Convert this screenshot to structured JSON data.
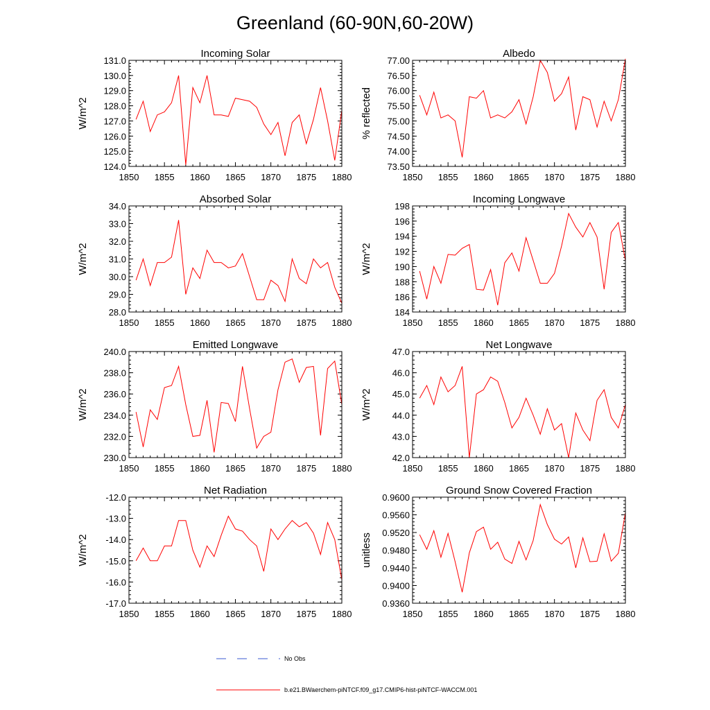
{
  "page_title": "Greenland (60-90N,60-20W)",
  "chart_data": [
    {
      "type": "line",
      "title": "Incoming Solar",
      "xlabel": "",
      "ylabel": "W/m^2",
      "xlim": [
        1850,
        1880
      ],
      "ylim": [
        124.0,
        131.0
      ],
      "xticks": [
        "1850",
        "1855",
        "1860",
        "1865",
        "1870",
        "1875",
        "1880"
      ],
      "yticks": [
        "124.0",
        "125.0",
        "126.0",
        "127.0",
        "128.0",
        "129.0",
        "130.0",
        "131.0"
      ],
      "x": [
        1851,
        1852,
        1853,
        1854,
        1855,
        1856,
        1857,
        1858,
        1859,
        1860,
        1861,
        1862,
        1863,
        1864,
        1865,
        1866,
        1867,
        1868,
        1869,
        1870,
        1871,
        1872,
        1873,
        1874,
        1875,
        1876,
        1877,
        1878,
        1879,
        1880
      ],
      "series": [
        {
          "values": [
            127.1,
            128.3,
            126.3,
            127.4,
            127.6,
            128.2,
            130.0,
            124.1,
            129.2,
            128.2,
            130.0,
            127.4,
            127.4,
            127.3,
            128.5,
            128.4,
            128.3,
            127.9,
            126.8,
            126.1,
            126.9,
            124.7,
            126.9,
            127.4,
            125.5,
            127.1,
            129.2,
            127.0,
            124.4,
            127.7
          ]
        }
      ]
    },
    {
      "type": "line",
      "title": "Albedo",
      "xlabel": "",
      "ylabel": "% reflected",
      "xlim": [
        1850,
        1880
      ],
      "ylim": [
        73.5,
        77.0
      ],
      "xticks": [
        "1850",
        "1855",
        "1860",
        "1865",
        "1870",
        "1875",
        "1880"
      ],
      "yticks": [
        "73.50",
        "74.00",
        "74.50",
        "75.00",
        "75.50",
        "76.00",
        "76.50",
        "77.00"
      ],
      "x": [
        1851,
        1852,
        1853,
        1854,
        1855,
        1856,
        1857,
        1858,
        1859,
        1860,
        1861,
        1862,
        1863,
        1864,
        1865,
        1866,
        1867,
        1868,
        1869,
        1870,
        1871,
        1872,
        1873,
        1874,
        1875,
        1876,
        1877,
        1878,
        1879,
        1880
      ],
      "series": [
        {
          "values": [
            75.85,
            75.2,
            75.95,
            75.1,
            75.2,
            75.0,
            73.8,
            75.8,
            75.75,
            76.0,
            75.1,
            75.2,
            75.1,
            75.3,
            75.7,
            74.9,
            75.8,
            77.0,
            76.6,
            75.65,
            75.9,
            76.45,
            74.7,
            75.8,
            75.7,
            74.8,
            75.65,
            75.0,
            75.7,
            77.05
          ]
        }
      ]
    },
    {
      "type": "line",
      "title": "Absorbed Solar",
      "xlabel": "",
      "ylabel": "W/m^2",
      "xlim": [
        1850,
        1880
      ],
      "ylim": [
        28.0,
        34.0
      ],
      "xticks": [
        "1850",
        "1855",
        "1860",
        "1865",
        "1870",
        "1875",
        "1880"
      ],
      "yticks": [
        "28.0",
        "29.0",
        "30.0",
        "31.0",
        "32.0",
        "33.0",
        "34.0"
      ],
      "x": [
        1851,
        1852,
        1853,
        1854,
        1855,
        1856,
        1857,
        1858,
        1859,
        1860,
        1861,
        1862,
        1863,
        1864,
        1865,
        1866,
        1867,
        1868,
        1869,
        1870,
        1871,
        1872,
        1873,
        1874,
        1875,
        1876,
        1877,
        1878,
        1879,
        1880
      ],
      "series": [
        {
          "values": [
            29.8,
            31.0,
            29.5,
            30.8,
            30.8,
            31.1,
            33.2,
            29.0,
            30.5,
            29.9,
            31.5,
            30.8,
            30.8,
            30.5,
            30.6,
            31.3,
            30.0,
            28.7,
            28.7,
            29.8,
            29.5,
            28.6,
            31.0,
            29.9,
            29.6,
            31.0,
            30.5,
            30.8,
            29.4,
            28.5
          ]
        }
      ]
    },
    {
      "type": "line",
      "title": "Incoming Longwave",
      "xlabel": "",
      "ylabel": "W/m^2",
      "xlim": [
        1850,
        1880
      ],
      "ylim": [
        184,
        198
      ],
      "xticks": [
        "1850",
        "1855",
        "1860",
        "1865",
        "1870",
        "1875",
        "1880"
      ],
      "yticks": [
        "184",
        "186",
        "188",
        "190",
        "192",
        "194",
        "196",
        "198"
      ],
      "x": [
        1851,
        1852,
        1853,
        1854,
        1855,
        1856,
        1857,
        1858,
        1859,
        1860,
        1861,
        1862,
        1863,
        1864,
        1865,
        1866,
        1867,
        1868,
        1869,
        1870,
        1871,
        1872,
        1873,
        1874,
        1875,
        1876,
        1877,
        1878,
        1879,
        1880
      ],
      "series": [
        {
          "values": [
            189.4,
            185.7,
            190.0,
            187.8,
            191.6,
            191.5,
            192.4,
            192.9,
            187.0,
            186.9,
            189.6,
            184.9,
            190.5,
            191.8,
            189.4,
            193.8,
            190.8,
            187.8,
            187.8,
            189.1,
            192.7,
            197.0,
            195.2,
            193.9,
            195.8,
            193.9,
            187.0,
            194.5,
            195.8,
            190.8
          ]
        }
      ]
    },
    {
      "type": "line",
      "title": "Emitted Longwave",
      "xlabel": "",
      "ylabel": "W/m^2",
      "xlim": [
        1850,
        1880
      ],
      "ylim": [
        230.0,
        240.0
      ],
      "xticks": [
        "1850",
        "1855",
        "1860",
        "1865",
        "1870",
        "1875",
        "1880"
      ],
      "yticks": [
        "230.0",
        "232.0",
        "234.0",
        "236.0",
        "238.0",
        "240.0"
      ],
      "x": [
        1851,
        1852,
        1853,
        1854,
        1855,
        1856,
        1857,
        1858,
        1859,
        1860,
        1861,
        1862,
        1863,
        1864,
        1865,
        1866,
        1867,
        1868,
        1869,
        1870,
        1871,
        1872,
        1873,
        1874,
        1875,
        1876,
        1877,
        1878,
        1879,
        1880
      ],
      "series": [
        {
          "values": [
            234.3,
            231.0,
            234.5,
            233.6,
            236.6,
            236.8,
            238.6,
            235.0,
            232.0,
            232.1,
            235.4,
            230.5,
            235.2,
            235.1,
            233.4,
            238.6,
            234.6,
            230.9,
            232.0,
            232.4,
            236.4,
            239.0,
            239.3,
            237.1,
            238.5,
            238.6,
            232.1,
            238.4,
            239.1,
            235.0
          ]
        }
      ]
    },
    {
      "type": "line",
      "title": "Net Longwave",
      "xlabel": "",
      "ylabel": "W/m^2",
      "xlim": [
        1850,
        1880
      ],
      "ylim": [
        42.0,
        47.0
      ],
      "xticks": [
        "1850",
        "1855",
        "1860",
        "1865",
        "1870",
        "1875",
        "1880"
      ],
      "yticks": [
        "42.0",
        "43.0",
        "44.0",
        "45.0",
        "46.0",
        "47.0"
      ],
      "x": [
        1851,
        1852,
        1853,
        1854,
        1855,
        1856,
        1857,
        1858,
        1859,
        1860,
        1861,
        1862,
        1863,
        1864,
        1865,
        1866,
        1867,
        1868,
        1869,
        1870,
        1871,
        1872,
        1873,
        1874,
        1875,
        1876,
        1877,
        1878,
        1879,
        1880
      ],
      "series": [
        {
          "values": [
            44.8,
            45.4,
            44.5,
            45.8,
            45.1,
            45.4,
            46.3,
            42.0,
            45.0,
            45.2,
            45.8,
            45.6,
            44.6,
            43.4,
            43.9,
            44.8,
            44.0,
            43.1,
            44.3,
            43.3,
            43.6,
            42.0,
            44.1,
            43.3,
            42.8,
            44.7,
            45.2,
            43.9,
            43.4,
            44.5
          ]
        }
      ]
    },
    {
      "type": "line",
      "title": "Net Radiation",
      "xlabel": "",
      "ylabel": "W/m^2",
      "xlim": [
        1850,
        1880
      ],
      "ylim": [
        -17.0,
        -12.0
      ],
      "xticks": [
        "1850",
        "1855",
        "1860",
        "1865",
        "1870",
        "1875",
        "1880"
      ],
      "yticks": [
        "-17.0",
        "-16.0",
        "-15.0",
        "-14.0",
        "-13.0",
        "-12.0"
      ],
      "x": [
        1851,
        1852,
        1853,
        1854,
        1855,
        1856,
        1857,
        1858,
        1859,
        1860,
        1861,
        1862,
        1863,
        1864,
        1865,
        1866,
        1867,
        1868,
        1869,
        1870,
        1871,
        1872,
        1873,
        1874,
        1875,
        1876,
        1877,
        1878,
        1879,
        1880
      ],
      "series": [
        {
          "values": [
            -15.0,
            -14.4,
            -15.0,
            -15.0,
            -14.3,
            -14.3,
            -13.1,
            -13.1,
            -14.5,
            -15.3,
            -14.3,
            -14.8,
            -13.8,
            -12.9,
            -13.5,
            -13.6,
            -14.0,
            -14.3,
            -15.5,
            -13.5,
            -14.0,
            -13.5,
            -13.1,
            -13.4,
            -13.2,
            -13.7,
            -14.7,
            -13.2,
            -14.0,
            -15.9
          ]
        }
      ]
    },
    {
      "type": "line",
      "title": "Ground Snow Covered Fraction",
      "xlabel": "",
      "ylabel": "unitless",
      "xlim": [
        1850,
        1880
      ],
      "ylim": [
        0.936,
        0.96
      ],
      "xticks": [
        "1850",
        "1855",
        "1860",
        "1865",
        "1870",
        "1875",
        "1880"
      ],
      "yticks": [
        "0.9360",
        "0.9400",
        "0.9440",
        "0.9480",
        "0.9520",
        "0.9560",
        "0.9600"
      ],
      "x": [
        1851,
        1852,
        1853,
        1854,
        1855,
        1856,
        1857,
        1858,
        1859,
        1860,
        1861,
        1862,
        1863,
        1864,
        1865,
        1866,
        1867,
        1868,
        1869,
        1870,
        1871,
        1872,
        1873,
        1874,
        1875,
        1876,
        1877,
        1878,
        1879,
        1880
      ],
      "series": [
        {
          "values": [
            0.9515,
            0.9482,
            0.9524,
            0.9464,
            0.9518,
            0.9454,
            0.9385,
            0.9474,
            0.9522,
            0.9532,
            0.9482,
            0.9498,
            0.946,
            0.945,
            0.95,
            0.9458,
            0.9502,
            0.9583,
            0.9538,
            0.9505,
            0.9494,
            0.951,
            0.944,
            0.9508,
            0.9454,
            0.9455,
            0.9517,
            0.9455,
            0.9473,
            0.9565
          ]
        }
      ]
    }
  ],
  "legend": {
    "obs_label": "No Obs",
    "model_label": "b.e21.BWaerchem-piNTCF.f09_g17.CMIP6-hist-piNTCF-WACCM.001"
  },
  "colors": {
    "model_line": "#ff0000",
    "obs_line": "#3a5ad0",
    "axis": "#000000"
  }
}
